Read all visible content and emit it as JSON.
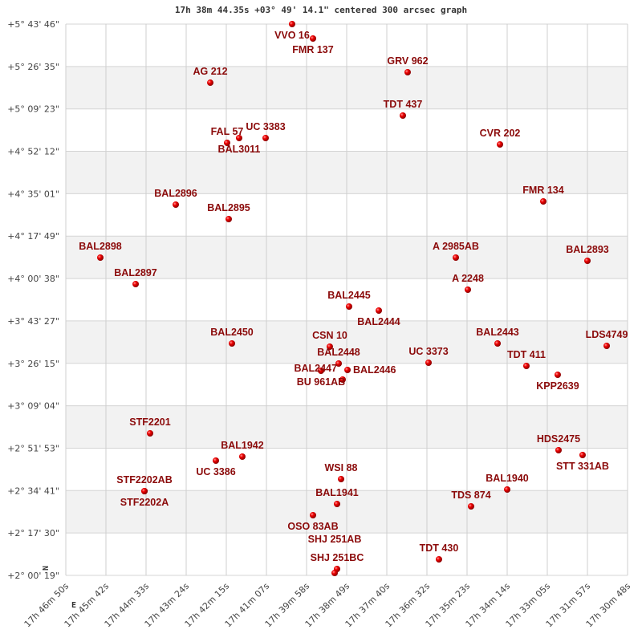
{
  "chart_data": {
    "type": "scatter",
    "title": "17h 38m 44.35s +03° 49' 14.1\" centered 300 arcsec graph",
    "x_axis": {
      "ticks": [
        "17h 46m 50s",
        "17h 45m 42s",
        "17h 44m 33s",
        "17h 43m 24s",
        "17h 42m 15s",
        "17h 41m 07s",
        "17h 39m 58s",
        "17h 38m 49s",
        "17h 37m 40s",
        "17h 36m 32s",
        "17h 35m 23s",
        "17h 34m 14s",
        "17h 33m 05s",
        "17h 31m 57s",
        "17h 30m 48s"
      ],
      "direction": "decreasing right"
    },
    "y_axis": {
      "ticks": [
        "+5° 43' 46\"",
        "+5° 26' 35\"",
        "+5° 09' 23\"",
        "+4° 52' 12\"",
        "+4° 35' 01\"",
        "+4° 17' 49\"",
        "+4° 00' 38\"",
        "+3° 43' 27\"",
        "+3° 26' 15\"",
        "+3° 09' 04\"",
        "+2° 51' 53\"",
        "+2° 34' 41\"",
        "+2° 17' 30\"",
        "+2° 00' 19\""
      ]
    },
    "compass": {
      "north": "N",
      "east": "E"
    },
    "grid": true,
    "band_color": "#f2f2f2",
    "point_color": "#dd0000",
    "label_color": "#8b0a0a",
    "points": [
      {
        "name": "VVO 16",
        "ra": "17h 40m 22.5s",
        "dec": "+5° 43' 46\""
      },
      {
        "name": "FMR 137",
        "ra": "17h 39m 46.7s",
        "dec": "+5° 37' 54.5\""
      },
      {
        "name": "GRV 962",
        "ra": "17h 37m 04.6s",
        "dec": "+5° 24' 14.9\""
      },
      {
        "name": "AG  212",
        "ra": "17h 42m 42.6s",
        "dec": "+5° 20' 01\""
      },
      {
        "name": "TDT 437",
        "ra": "17h 37m 12.8s",
        "dec": "+5° 06' 41\""
      },
      {
        "name": "FAL  57",
        "ra": "17h 42m 13.8s",
        "dec": "+4° 55' 37.6\""
      },
      {
        "name": "BAL3011",
        "ra": "17h 41m 53.2s",
        "dec": "+4° 57' 34.7\""
      },
      {
        "name": "UC 3383",
        "ra": "17h 41m 07.8s",
        "dec": "+4° 57' 34.7\""
      },
      {
        "name": "CVR 202",
        "ra": "17h 34m 26.5s",
        "dec": "+4° 54' 58.6\""
      },
      {
        "name": "BAL2896",
        "ra": "17h 43m 41.7s",
        "dec": "+4° 30' 34.9\""
      },
      {
        "name": "FMR 134",
        "ra": "17h 33m 12.3s",
        "dec": "+4° 31' 53\""
      },
      {
        "name": "BAL2895",
        "ra": "17h 42m 11.0s",
        "dec": "+4° 24' 43.7\""
      },
      {
        "name": "BAL2898",
        "ra": "17h 45m 50.9s",
        "dec": "+4° 09' 06.9\""
      },
      {
        "name": "A  2985AB",
        "ra": "17h 35m 42.1s",
        "dec": "+4° 09' 06.9\""
      },
      {
        "name": "BAL2893",
        "ra": "17h 31m 56.7s",
        "dec": "+4° 07' 48.9\""
      },
      {
        "name": "BAL2897",
        "ra": "17h 44m 50.4s",
        "dec": "+3° 58' 23\""
      },
      {
        "name": "A  2248",
        "ra": "17h 35m 21.5s",
        "dec": "+3° 56' 06.3\""
      },
      {
        "name": "BAL2445",
        "ra": "17h 38m 44.9s",
        "dec": "+3° 49' 16.5\""
      },
      {
        "name": "BAL2444",
        "ra": "17h 37m 54.0s",
        "dec": "+3° 47' 39\""
      },
      {
        "name": "BAL2450",
        "ra": "17h 42m 05.5s",
        "dec": "+3° 34' 18.8\""
      },
      {
        "name": "BAL2443",
        "ra": "17h 34m 30.6s",
        "dec": "+3° 34' 18.8\""
      },
      {
        "name": "LDS4749",
        "ra": "17h 31m 23.7s",
        "dec": "+3° 33' 20.3\""
      },
      {
        "name": "CSN  10",
        "ra": "17h 39m 17.9s",
        "dec": "+3° 33' 00.8\""
      },
      {
        "name": "BAL2448",
        "ra": "17h 39m 02.7s",
        "dec": "+3° 26' 11\""
      },
      {
        "name": "BU  961AB",
        "ra": "17h 39m 33.0s",
        "dec": "+3° 23' 15.3\""
      },
      {
        "name": "BAL2446",
        "ra": "17h 38m 47.6s",
        "dec": "+3° 23' 34.8\""
      },
      {
        "name": "BAL2447",
        "ra": "17h 38m 55.9s",
        "dec": "+3° 19' 40.7\""
      },
      {
        "name": "UC 3373",
        "ra": "17h 36m 28.8s",
        "dec": "+3° 26' 30.5\""
      },
      {
        "name": "TDT 411",
        "ra": "17h 33m 41.2s",
        "dec": "+3° 25' 12.4\""
      },
      {
        "name": "KPP2639",
        "ra": "17h 32m 47.6s",
        "dec": "+3° 21' 37.8\""
      },
      {
        "name": "STF2201",
        "ra": "17h 44m 25.7s",
        "dec": "+2° 57' 53.2\""
      },
      {
        "name": "HDS2475",
        "ra": "17h 32m 46.2s",
        "dec": "+2° 51' 03.3\""
      },
      {
        "name": "STT 331AB",
        "ra": "17h 32m 05.0s",
        "dec": "+2° 49' 06.3\""
      },
      {
        "name": "BAL1942",
        "ra": "17h 41m 47.7s",
        "dec": "+2° 48' 27.2\""
      },
      {
        "name": "UC 3386",
        "ra": "17h 42m 33.0s",
        "dec": "+2° 46' 49.6\""
      },
      {
        "name": "WSI  88",
        "ra": "17h 38m 58.6s",
        "dec": "+2° 39' 20.8\""
      },
      {
        "name": "STF2202AB",
        "ra": "17h 44m 35.3s",
        "dec": "+2° 34' 28.1\""
      },
      {
        "name": "STF2202A",
        "ra": "17h 44m 35.3s",
        "dec": "+2° 34' 28.1\""
      },
      {
        "name": "BAL1940",
        "ra": "17h 34m 14.1s",
        "dec": "+2° 35' 07.1\""
      },
      {
        "name": "BAL1941",
        "ra": "17h 39m 05.5s",
        "dec": "+2° 29' 15.8\""
      },
      {
        "name": "OSO  83AB",
        "ra": "17h 39m 46.7s",
        "dec": "+2° 24' 42.6\""
      },
      {
        "name": "TDS 874",
        "ra": "17h 35m 16.0s",
        "dec": "+2° 28' 17.3\""
      },
      {
        "name": "TDT 430",
        "ra": "17h 36m 11.0s",
        "dec": "+2° 06' 49.3\""
      },
      {
        "name": "SHJ 251BC",
        "ra": "17h 39m 05.5s",
        "dec": "+2° 02' 55.1\""
      },
      {
        "name": "SHJ 251AB",
        "ra": "17h 39m 09.6s",
        "dec": "+2° 01' 17.5\""
      }
    ]
  }
}
